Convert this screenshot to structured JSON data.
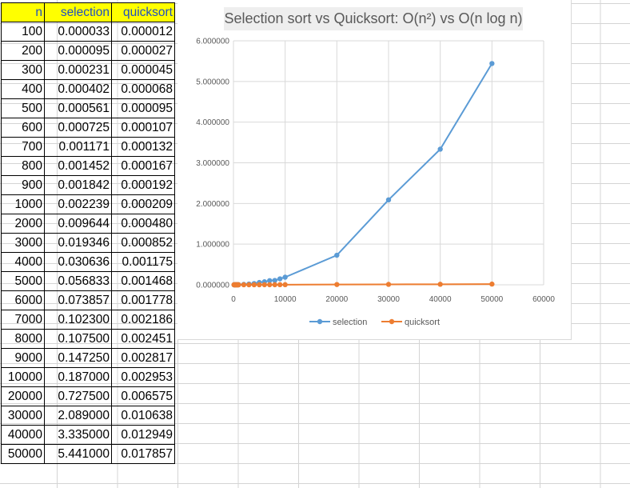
{
  "table": {
    "headers": [
      "n",
      "selection",
      "quicksort"
    ],
    "rows": [
      [
        "100",
        "0.000033",
        "0.000012"
      ],
      [
        "200",
        "0.000095",
        "0.000027"
      ],
      [
        "300",
        "0.000231",
        "0.000045"
      ],
      [
        "400",
        "0.000402",
        "0.000068"
      ],
      [
        "500",
        "0.000561",
        "0.000095"
      ],
      [
        "600",
        "0.000725",
        "0.000107"
      ],
      [
        "700",
        "0.001171",
        "0.000132"
      ],
      [
        "800",
        "0.001452",
        "0.000167"
      ],
      [
        "900",
        "0.001842",
        "0.000192"
      ],
      [
        "1000",
        "0.002239",
        "0.000209"
      ],
      [
        "2000",
        "0.009644",
        "0.000480"
      ],
      [
        "3000",
        "0.019346",
        "0.000852"
      ],
      [
        "4000",
        "0.030636",
        "0.001175"
      ],
      [
        "5000",
        "0.056833",
        "0.001468"
      ],
      [
        "6000",
        "0.073857",
        "0.001778"
      ],
      [
        "7000",
        "0.102300",
        "0.002186"
      ],
      [
        "8000",
        "0.107500",
        "0.002451"
      ],
      [
        "9000",
        "0.147250",
        "0.002817"
      ],
      [
        "10000",
        "0.187000",
        "0.002953"
      ],
      [
        "20000",
        "0.727500",
        "0.006575"
      ],
      [
        "30000",
        "2.089000",
        "0.010638"
      ],
      [
        "40000",
        "3.335000",
        "0.012949"
      ],
      [
        "50000",
        "5.441000",
        "0.017857"
      ]
    ]
  },
  "colors": {
    "header_bg": "#ffff00",
    "header_text": "#1f4fc1",
    "selection": "#5b9bd5",
    "quicksort": "#ed7d31"
  },
  "chart_data": {
    "type": "scatter",
    "title": "Selection sort vs Quicksort: O(n²) vs O(n log n)",
    "x": [
      100,
      200,
      300,
      400,
      500,
      600,
      700,
      800,
      900,
      1000,
      2000,
      3000,
      4000,
      5000,
      6000,
      7000,
      8000,
      9000,
      10000,
      20000,
      30000,
      40000,
      50000
    ],
    "series": [
      {
        "name": "selection",
        "color": "#5b9bd5",
        "values": [
          3.3e-05,
          9.5e-05,
          0.000231,
          0.000402,
          0.000561,
          0.000725,
          0.001171,
          0.001452,
          0.001842,
          0.002239,
          0.009644,
          0.019346,
          0.030636,
          0.056833,
          0.073857,
          0.1023,
          0.1075,
          0.14725,
          0.187,
          0.7275,
          2.089,
          3.335,
          5.441
        ]
      },
      {
        "name": "quicksort",
        "color": "#ed7d31",
        "values": [
          1.2e-05,
          2.7e-05,
          4.5e-05,
          6.8e-05,
          9.5e-05,
          0.000107,
          0.000132,
          0.000167,
          0.000192,
          0.000209,
          0.00048,
          0.000852,
          0.001175,
          0.001468,
          0.001778,
          0.002186,
          0.002451,
          0.002817,
          0.002953,
          0.006575,
          0.010638,
          0.012949,
          0.017857
        ]
      }
    ],
    "xlim": [
      0,
      60000
    ],
    "ylim": [
      0,
      6
    ],
    "x_ticks": [
      "0",
      "10000",
      "20000",
      "30000",
      "40000",
      "50000",
      "60000"
    ],
    "y_ticks": [
      "0.000000",
      "1.000000",
      "2.000000",
      "3.000000",
      "4.000000",
      "5.000000",
      "6.000000"
    ],
    "lines": true,
    "markers": true,
    "grid": true,
    "legend": "bottom"
  }
}
